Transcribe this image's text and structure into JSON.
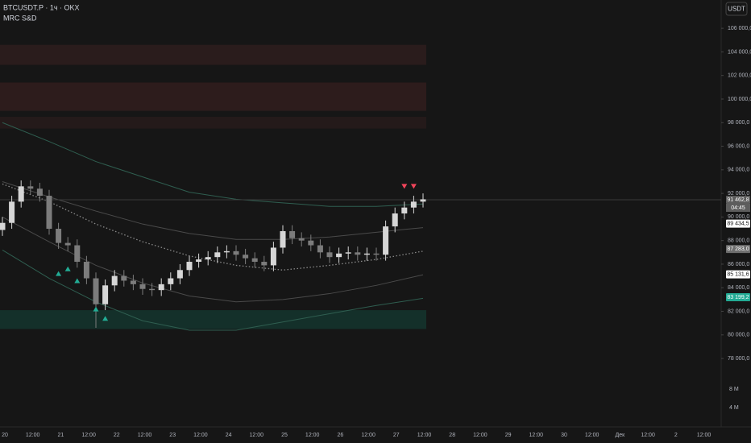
{
  "header": {
    "symbol": "BTCUSDT.P · 1ч · OKX",
    "indicator": "MRC S&D",
    "currency_button": "USDT"
  },
  "chart_data": {
    "type": "candlestick",
    "categories": [
      null,
      null,
      null,
      null,
      null,
      null,
      null,
      null,
      null,
      null,
      null,
      null,
      null,
      null,
      null,
      null,
      null,
      null,
      null,
      null,
      null,
      null,
      null,
      null,
      null,
      null,
      null,
      null,
      null,
      null,
      null,
      null,
      null,
      null,
      null,
      null,
      null,
      null,
      null,
      null,
      null,
      null,
      null,
      null,
      null,
      null
    ],
    "open": [
      88900,
      89500,
      91300,
      92600,
      92400,
      91800,
      89000,
      87800,
      87600,
      86200,
      84800,
      82600,
      84200,
      85000,
      84600,
      84300,
      83900,
      83800,
      84300,
      84800,
      85500,
      86200,
      86400,
      86600,
      87000,
      87100,
      86800,
      86500,
      86200,
      85900,
      87400,
      88800,
      88200,
      88000,
      87600,
      87000,
      86600,
      86900,
      87000,
      86800,
      86900,
      86800,
      89200,
      90300,
      90800,
      91300
    ],
    "high": [
      90000,
      91800,
      93100,
      93100,
      92900,
      92300,
      89500,
      88300,
      88100,
      86700,
      85300,
      84700,
      85500,
      85500,
      85100,
      84800,
      84400,
      84800,
      85300,
      86000,
      86700,
      86900,
      87100,
      87500,
      87600,
      87600,
      87300,
      87000,
      86700,
      87900,
      89300,
      89300,
      88700,
      88500,
      88100,
      87500,
      87400,
      87500,
      87500,
      87400,
      87400,
      89700,
      90800,
      91300,
      91800,
      92000
    ],
    "low": [
      88400,
      89000,
      90800,
      91900,
      91300,
      88500,
      87300,
      87100,
      85700,
      84300,
      80600,
      82100,
      83700,
      84100,
      83800,
      83400,
      83300,
      83300,
      83800,
      84300,
      85000,
      85700,
      85900,
      86100,
      86500,
      86300,
      86000,
      85700,
      85400,
      85400,
      86900,
      87700,
      87500,
      87100,
      86500,
      86100,
      86100,
      86400,
      86300,
      86300,
      86300,
      86300,
      88700,
      89800,
      90300,
      90800
    ],
    "close": [
      89500,
      91300,
      92600,
      92400,
      91800,
      89000,
      87800,
      87600,
      86200,
      84800,
      82600,
      84200,
      85000,
      84600,
      84300,
      83900,
      83800,
      84300,
      84800,
      85500,
      86200,
      86400,
      86600,
      87000,
      87100,
      86800,
      86500,
      86200,
      85900,
      87400,
      88800,
      88200,
      88000,
      87600,
      87000,
      86600,
      86900,
      87000,
      86800,
      86900,
      86800,
      89200,
      90300,
      90800,
      91300,
      91500
    ],
    "up_color": "#d6d6d6",
    "down_color": "#7c7c7c",
    "bands": [
      {
        "color": "#2f5e50",
        "dash": false,
        "values": [
          98000,
          96400,
          94700,
          93400,
          92100,
          91500,
          91200,
          90900,
          90900,
          91100
        ]
      },
      {
        "color": "#4a4a4a",
        "dash": false,
        "values": [
          93000,
          91700,
          90500,
          89400,
          88600,
          88100,
          88100,
          88300,
          88700,
          89100
        ]
      },
      {
        "color": "#8a8a8a",
        "dash": true,
        "values": [
          92800,
          91300,
          89400,
          87900,
          86700,
          85900,
          85500,
          85900,
          86400,
          87100
        ]
      },
      {
        "color": "#4a4a4a",
        "dash": false,
        "values": [
          90000,
          87900,
          85900,
          84400,
          83300,
          82800,
          83000,
          83500,
          84200,
          85100
        ]
      },
      {
        "color": "#2f5e50",
        "dash": false,
        "values": [
          87200,
          84800,
          82800,
          81200,
          80400,
          80400,
          81100,
          81800,
          82500,
          83100
        ]
      }
    ],
    "zones": [
      {
        "from": 104600,
        "to": 102900,
        "color": "#2a1c1c"
      },
      {
        "from": 101400,
        "to": 99000,
        "color": "#2d1c1c"
      },
      {
        "from": 98500,
        "to": 97500,
        "color": "#241a1a"
      },
      {
        "from": 82100,
        "to": 80500,
        "color": "#14302a"
      }
    ],
    "sell_signals": {
      "color": "#f0445a",
      "index": [
        43,
        44
      ],
      "price": [
        92600,
        92600
      ]
    },
    "buy_signals": {
      "color": "#22ab94",
      "index": [
        6,
        7,
        8,
        10,
        11
      ],
      "price": [
        85200,
        85600,
        84600,
        82200,
        81400
      ]
    },
    "price_labels": [
      {
        "value": 91462.8,
        "label": "91 462,8",
        "bg": "#5d5d5d",
        "fg": "#ffffff"
      },
      {
        "value": 89434.5,
        "label": "89 434,5",
        "bg": "#ffffff",
        "fg": "#131313"
      },
      {
        "value": 87283.0,
        "label": "87 283,0",
        "bg": "#6e6e6e",
        "fg": "#ffffff"
      },
      {
        "value": 85131.6,
        "label": "85 131,6",
        "bg": "#ffffff",
        "fg": "#131313"
      },
      {
        "value": 83199.2,
        "label": "83 199,2",
        "bg": "#22ab94",
        "fg": "#ffffff"
      }
    ],
    "countdown": "04:45",
    "ylim": [
      72200,
      108400
    ],
    "yticks": [
      {
        "value": 78000,
        "label": "78 000,0"
      },
      {
        "value": 80000,
        "label": "80 000,0"
      },
      {
        "value": 82000,
        "label": "82 000,0"
      },
      {
        "value": 84000,
        "label": "84 000,0"
      },
      {
        "value": 86000,
        "label": "86 000,0"
      },
      {
        "value": 88000,
        "label": "88 000,0"
      },
      {
        "value": 90000,
        "label": "90 000,0"
      },
      {
        "value": 92000,
        "label": "92 000,0"
      },
      {
        "value": 94000,
        "label": "94 000,0"
      },
      {
        "value": 96000,
        "label": "96 000,0"
      },
      {
        "value": 98000,
        "label": "98 000,0"
      },
      {
        "value": 100000,
        "label": "100 000,0"
      },
      {
        "value": 102000,
        "label": "102 000,0"
      },
      {
        "value": 104000,
        "label": "104 000,0"
      },
      {
        "value": 106000,
        "label": "106 000,0"
      }
    ],
    "volume_labels": [
      "8 M",
      "4 M"
    ],
    "x_labels": [
      "20",
      "12:00",
      "21",
      "12:00",
      "22",
      "12:00",
      "23",
      "12:00",
      "24",
      "12:00",
      "25",
      "12:00",
      "26",
      "12:00",
      "27",
      "12:00",
      "28",
      "12:00",
      "29",
      "12:00",
      "30",
      "12:00",
      "Дек",
      "12:00",
      "2",
      "12:00"
    ]
  }
}
